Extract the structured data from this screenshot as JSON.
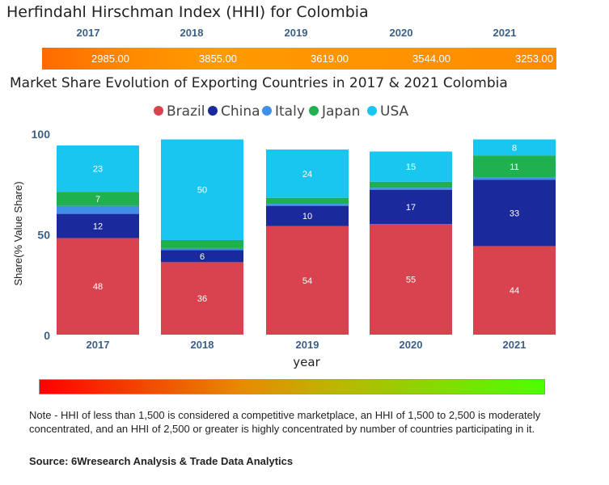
{
  "hhi": {
    "title": "Herfindahl Hirschman Index (HHI) for Colombia",
    "years": [
      "2017",
      "2018",
      "2019",
      "2020",
      "2021"
    ],
    "values": [
      "2985.00",
      "3855.00",
      "3619.00",
      "3544.00",
      "3253.00"
    ]
  },
  "chart_title": "Market Share Evolution of Exporting Countries in 2017 & 2021 Colombia",
  "chart_data": {
    "type": "bar",
    "stacked": true,
    "categories": [
      "2017",
      "2018",
      "2019",
      "2020",
      "2021"
    ],
    "series": [
      {
        "name": "Brazil",
        "color": "#d9434f",
        "values": [
          48,
          36,
          54,
          55,
          44
        ]
      },
      {
        "name": "China",
        "color": "#1a2a9c",
        "values": [
          12,
          6,
          10,
          17,
          33
        ]
      },
      {
        "name": "Italy",
        "color": "#3f8ee8",
        "values": [
          4,
          1,
          1,
          1,
          1
        ]
      },
      {
        "name": "Japan",
        "color": "#20b050",
        "values": [
          7,
          4,
          3,
          3,
          11
        ]
      },
      {
        "name": "USA",
        "color": "#19c6f0",
        "values": [
          23,
          50,
          24,
          15,
          8
        ]
      }
    ],
    "hidden_labels": {
      "Italy": true
    },
    "label_threshold": 5,
    "xlabel": "year",
    "ylabel": "Share(% Value Share)",
    "yticks": [
      0,
      50,
      100
    ],
    "ylim": [
      0,
      100
    ],
    "legend_position": "top"
  },
  "note": "Note - HHI of less than 1,500 is considered a competitive marketplace, an HHI of 1,500 to 2,500 is moderately concentrated, and an HHI of 2,500 or greater is highly concentrated by number of countries participating in it.",
  "source": "Source: 6Wresearch Analysis & Trade Data Analytics"
}
